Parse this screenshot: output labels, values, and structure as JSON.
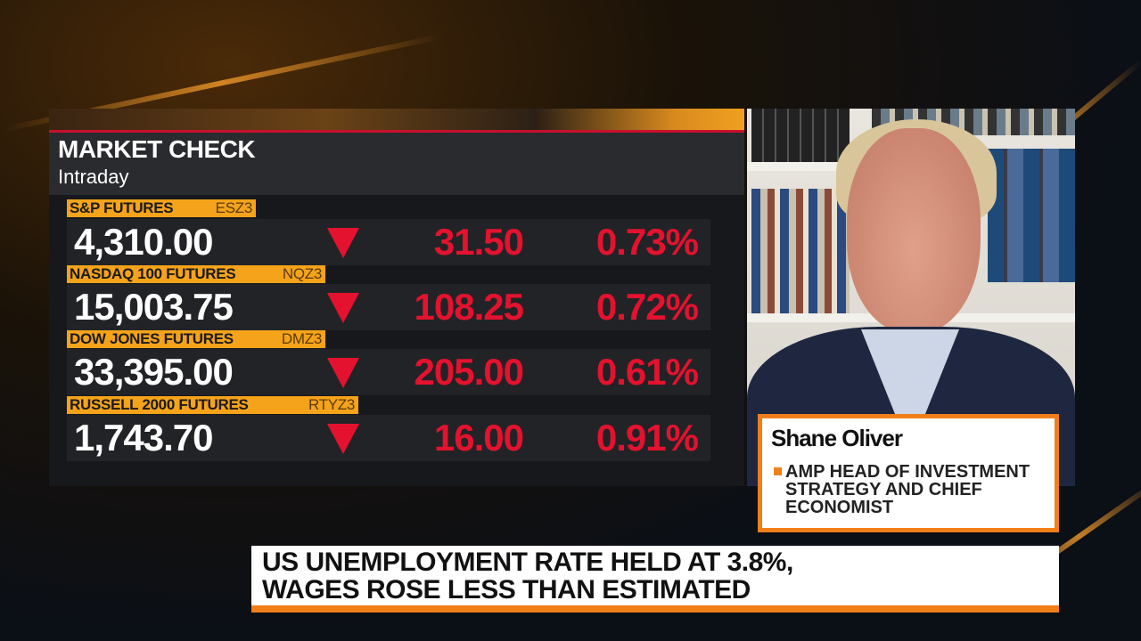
{
  "market_check": {
    "title": "MARKET CHECK",
    "subtitle": "Intraday",
    "rows": [
      {
        "name": "S&P FUTURES",
        "ticker": "ESZ3",
        "value": "4,310.00",
        "direction": "down",
        "change": "31.50",
        "percent": "0.73%"
      },
      {
        "name": "NASDAQ 100 FUTURES",
        "ticker": "NQZ3",
        "value": "15,003.75",
        "direction": "down",
        "change": "108.25",
        "percent": "0.72%"
      },
      {
        "name": "DOW JONES FUTURES",
        "ticker": "DMZ3",
        "value": "33,395.00",
        "direction": "down",
        "change": "205.00",
        "percent": "0.61%"
      },
      {
        "name": "RUSSELL 2000 FUTURES",
        "ticker": "RTYZ3",
        "value": "1,743.70",
        "direction": "down",
        "change": "16.00",
        "percent": "0.91%"
      }
    ]
  },
  "guest": {
    "name": "Shane Oliver",
    "title": "AMP HEAD OF INVESTMENT STRATEGY AND CHIEF ECONOMIST"
  },
  "headline": {
    "line1": "US UNEMPLOYMENT RATE HELD AT 3.8%,",
    "line2": "WAGES ROSE LESS THAN ESTIMATED"
  },
  "colors": {
    "accent_orange": "#f07f1a",
    "tag_orange": "#f5a31a",
    "down_red": "#e4122e",
    "panel_red_line": "#c8102e"
  }
}
